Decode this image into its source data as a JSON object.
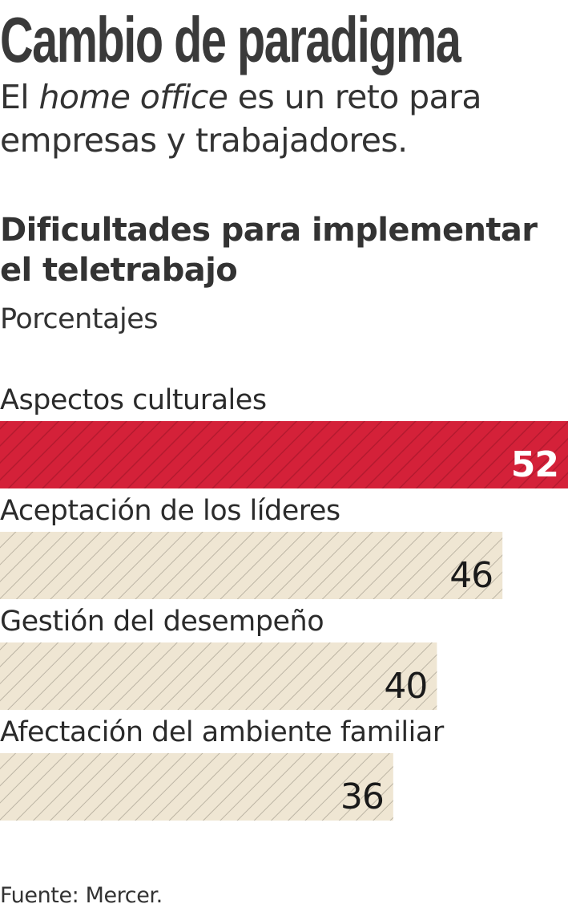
{
  "headline": "Cambio de paradigma",
  "deck": {
    "part1": "El ",
    "italic": "home office",
    "part2": " es un reto para empresas y trabajadores."
  },
  "colors": {
    "highlight_bar": "#d42139",
    "default_bar": "#efe6d3",
    "hatch_on_highlight": "#b51a2f",
    "hatch_on_default": "#b0a999"
  },
  "source": "Fuente: Mercer.",
  "chart_data": {
    "type": "bar",
    "orientation": "horizontal",
    "title": "Dificultades para implementar el teletrabajo",
    "subtitle": "Porcentajes",
    "categories": [
      "Aspectos culturales",
      "Aceptación de los líderes",
      "Gestión del desempeño",
      "Afectación del ambiente familiar"
    ],
    "values": [
      52,
      46,
      40,
      36
    ],
    "highlight": [
      true,
      false,
      false,
      false
    ],
    "xlim": [
      0,
      52
    ],
    "grid": false,
    "legend": "none",
    "data_labels": true
  }
}
